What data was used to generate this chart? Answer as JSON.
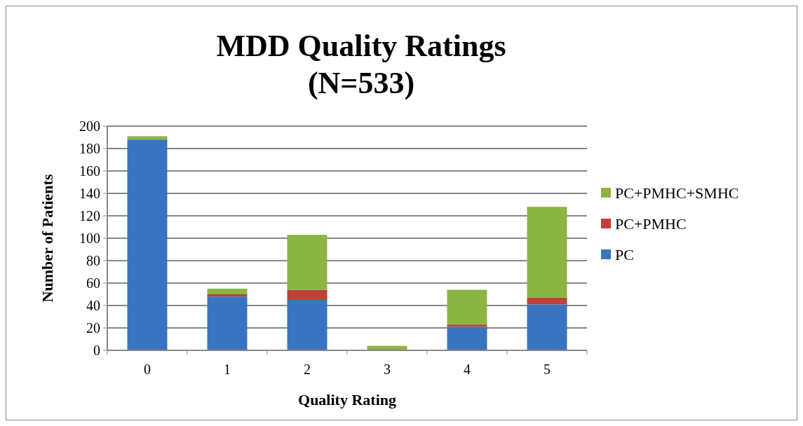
{
  "chart_data": {
    "type": "bar",
    "title": "MDD Quality Ratings",
    "subtitle": "(N=533)",
    "xlabel": "Quality Rating",
    "ylabel": "Number of Patients",
    "categories": [
      "0",
      "1",
      "2",
      "3",
      "4",
      "5"
    ],
    "series": [
      {
        "name": "PC",
        "color": "#3a74c0",
        "values": [
          188,
          48,
          45,
          0,
          21,
          41
        ]
      },
      {
        "name": "PC+PMHC",
        "color": "#c0403d",
        "values": [
          0,
          2,
          9,
          0,
          2,
          6
        ]
      },
      {
        "name": "PC+PMHC+SMHC",
        "color": "#8cb443",
        "values": [
          3,
          5,
          49,
          4,
          31,
          81
        ]
      }
    ],
    "stacked": true,
    "ylim": [
      0,
      200
    ],
    "yticks": [
      0,
      20,
      40,
      60,
      80,
      100,
      120,
      140,
      160,
      180,
      200
    ],
    "grid": "y",
    "legend": "right"
  }
}
